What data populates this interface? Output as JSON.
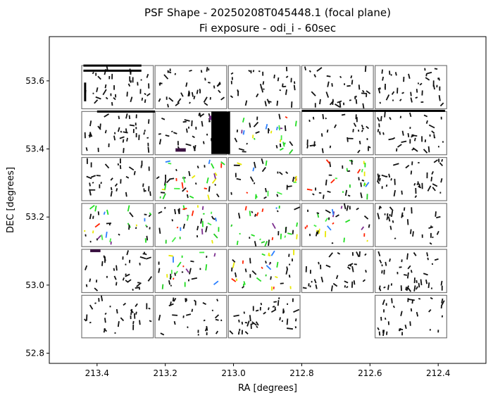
{
  "chart_data": {
    "type": "scatter",
    "title": "PSF Shape - 20250208T045448.1 (focal plane)",
    "subtitle": "Fi exposure - odi_i - 60sec",
    "xlabel": "RA [degrees]",
    "ylabel": "DEC [degrees]",
    "xlim": [
      213.54,
      212.26
    ],
    "ylim": [
      52.77,
      53.73
    ],
    "x_inverted": true,
    "grid": false,
    "x_ticks": [
      213.4,
      213.2,
      213.0,
      212.8,
      212.6,
      212.4
    ],
    "x_tick_labels": [
      "213.4",
      "213.2",
      "213.0",
      "212.8",
      "212.6",
      "212.4"
    ],
    "y_ticks": [
      52.8,
      53.0,
      53.2,
      53.4,
      53.6
    ],
    "y_tick_labels": [
      "52.8",
      "53.0",
      "53.2",
      "53.4",
      "53.6"
    ],
    "ccd_rows_dec": [
      {
        "dec_top": 53.645,
        "dec_bottom": 53.518
      },
      {
        "dec_top": 53.51,
        "dec_bottom": 53.383
      },
      {
        "dec_top": 53.375,
        "dec_bottom": 53.248
      },
      {
        "dec_top": 53.24,
        "dec_bottom": 53.113
      },
      {
        "dec_top": 53.105,
        "dec_bottom": 52.978
      },
      {
        "dec_top": 52.97,
        "dec_bottom": 52.845
      }
    ],
    "ccd_cols_ra": [
      {
        "ra_left": 213.445,
        "ra_right": 213.235
      },
      {
        "ra_left": 213.23,
        "ra_right": 213.02
      },
      {
        "ra_left": 213.015,
        "ra_right": 212.805
      },
      {
        "ra_left": 212.8,
        "ra_right": 212.59
      },
      {
        "ra_left": 212.585,
        "ra_right": 212.375
      }
    ],
    "ccd_present": [
      [
        1,
        1,
        1,
        1,
        1
      ],
      [
        1,
        1,
        1,
        1,
        1
      ],
      [
        1,
        1,
        1,
        1,
        1
      ],
      [
        1,
        1,
        1,
        1,
        1
      ],
      [
        1,
        1,
        1,
        1,
        1
      ],
      [
        1,
        1,
        1,
        0,
        1
      ]
    ],
    "whisker_colors": [
      "#000000",
      "#222222",
      "#333333",
      "#22dd22",
      "#44ee44",
      "#7b2d8e",
      "#e8e800",
      "#2a7fff",
      "#ff2200"
    ],
    "whisker_color_weights": {
      "black_dominant_cells": [
        [
          0,
          0
        ],
        [
          0,
          1
        ],
        [
          0,
          2
        ],
        [
          0,
          3
        ],
        [
          0,
          4
        ],
        [
          1,
          0
        ],
        [
          1,
          1
        ],
        [
          1,
          3
        ],
        [
          1,
          4
        ],
        [
          2,
          0
        ],
        [
          2,
          4
        ],
        [
          3,
          4
        ],
        [
          4,
          0
        ],
        [
          4,
          3
        ],
        [
          4,
          4
        ],
        [
          5,
          0
        ],
        [
          5,
          1
        ],
        [
          5,
          2
        ],
        [
          5,
          4
        ]
      ],
      "colored_cells": [
        [
          1,
          2
        ],
        [
          2,
          1
        ],
        [
          2,
          2
        ],
        [
          2,
          3
        ],
        [
          3,
          0
        ],
        [
          3,
          1
        ],
        [
          3,
          2
        ],
        [
          3,
          3
        ],
        [
          4,
          1
        ],
        [
          4,
          2
        ]
      ]
    },
    "artifacts": [
      {
        "kind": "bright-star-streak-horizontal",
        "ra": [
          213.44,
          213.27
        ],
        "dec": 53.645
      },
      {
        "kind": "bright-star-streak-horizontal",
        "ra": [
          213.44,
          213.27
        ],
        "dec": 53.63
      },
      {
        "kind": "bright-star-streak-horizontal",
        "ra": [
          213.4,
          213.23
        ],
        "dec": 53.51
      },
      {
        "kind": "bright-star-streak-horizontal",
        "ra": [
          212.8,
          212.38
        ],
        "dec": 53.512
      },
      {
        "kind": "saturated-column-block",
        "ra": [
          213.065,
          213.01
        ],
        "dec": [
          53.385,
          53.51
        ]
      },
      {
        "kind": "saturated-blob",
        "ra": [
          213.17,
          213.14
        ],
        "dec": [
          53.392,
          53.402
        ]
      },
      {
        "kind": "saturated-blob",
        "ra": [
          213.42,
          213.39
        ],
        "dec": [
          53.1,
          53.105
        ]
      },
      {
        "kind": "vertical-streak",
        "ra": 213.435,
        "dec": [
          53.54,
          53.595
        ]
      }
    ]
  }
}
